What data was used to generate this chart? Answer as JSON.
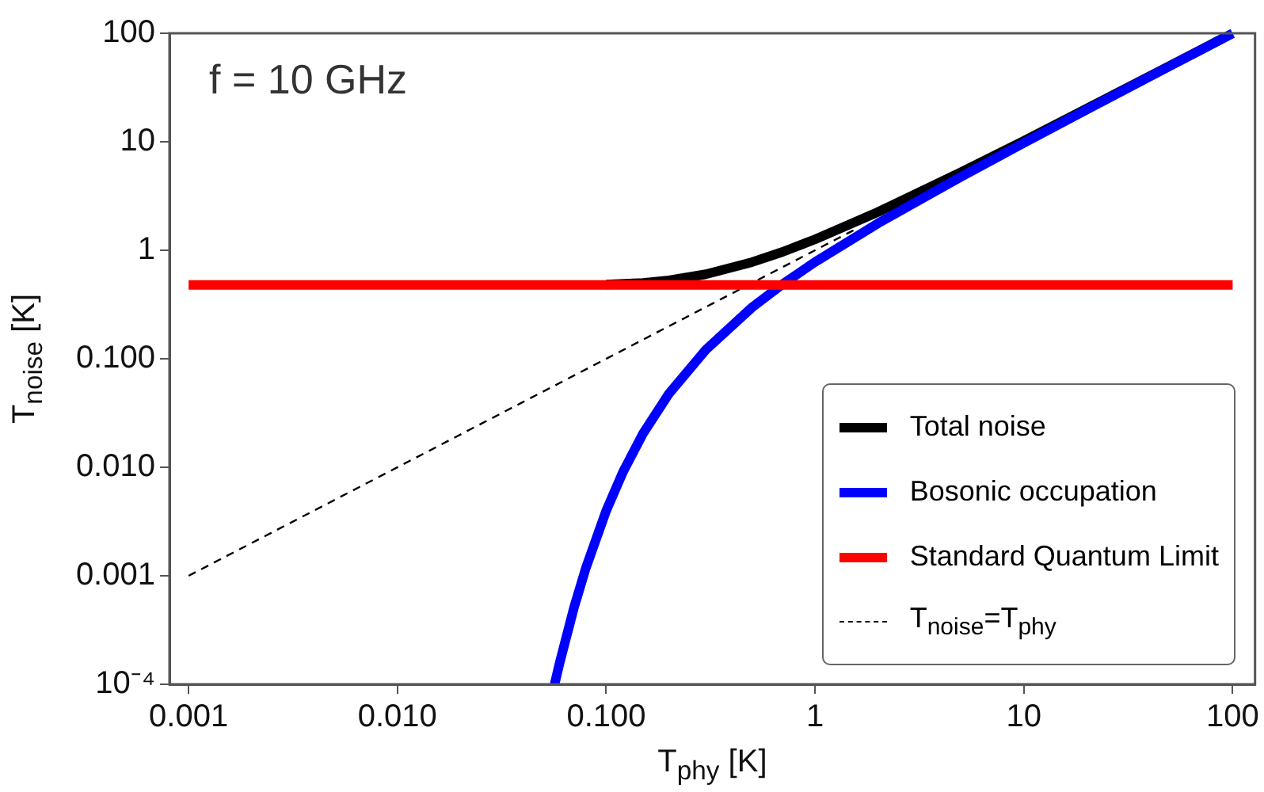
{
  "chart_data": {
    "type": "line",
    "xlabel": "T$_{phy}$ [K]",
    "ylabel": "T$_{noise}$ [K]",
    "log": "xy",
    "xlim": [
      0.00081,
      128
    ],
    "ylim": [
      0.0001,
      100
    ],
    "xticks": [
      {
        "value": 0.001,
        "label": "0.001"
      },
      {
        "value": 0.01,
        "label": "0.010"
      },
      {
        "value": 0.1,
        "label": "0.100"
      },
      1,
      10,
      100
    ],
    "yticks": [
      {
        "value": 0.0001,
        "label": "10⁻⁴"
      },
      {
        "value": 0.001,
        "label": "0.001"
      },
      {
        "value": 0.01,
        "label": "0.010"
      },
      {
        "value": 0.1,
        "label": "0.100"
      },
      1,
      10,
      100
    ],
    "grid": false,
    "legend": "bottom right",
    "marker": "none",
    "annotations": [
      "f = 10 GHz"
    ],
    "series": [
      {
        "name": "Total noise",
        "color": "#000000",
        "x": [
          0.1,
          0.15,
          0.2,
          0.3,
          0.5,
          0.7,
          1,
          2,
          5,
          10,
          20,
          50,
          90
        ],
        "values": [
          0.484,
          0.5,
          0.528,
          0.601,
          0.778,
          0.967,
          1.26,
          2.25,
          5.24,
          10.2,
          20.2,
          50.2,
          90.2
        ]
      },
      {
        "name": "Bosonic occupation",
        "color": "#0000ff",
        "x": [
          0.0566,
          0.06,
          0.07,
          0.08,
          0.1,
          0.12,
          0.15,
          0.2,
          0.3,
          0.5,
          0.7,
          1,
          2,
          5,
          10,
          20,
          50,
          100
        ],
        "values": [
          0.0001,
          0.000161,
          0.000505,
          0.00119,
          0.00398,
          0.00895,
          0.0204,
          0.0479,
          0.121,
          0.298,
          0.487,
          0.779,
          1.77,
          4.76,
          9.76,
          19.8,
          49.8,
          99.8
        ]
      },
      {
        "name": "Standard Quantum Limit",
        "color": "#ff0000",
        "x": [
          0.001,
          100
        ],
        "values": [
          0.48,
          0.48
        ]
      },
      {
        "name": "T$_{noise}$=T$_{phy}$",
        "color": "#000000",
        "line_style": "dashed",
        "x": [
          0.001,
          1.6
        ],
        "values": [
          0.001,
          1.6
        ]
      }
    ]
  }
}
